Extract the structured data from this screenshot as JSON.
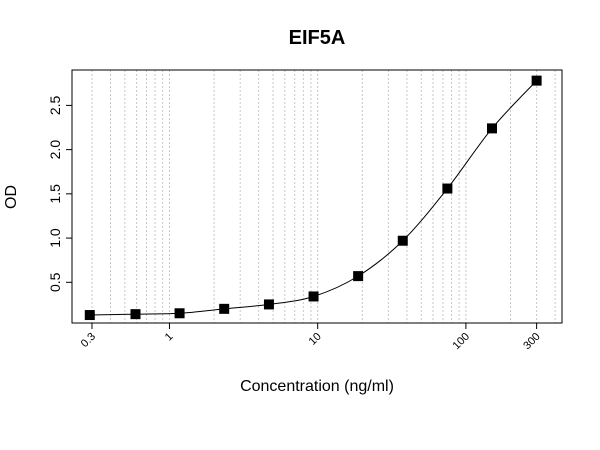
{
  "chart_data": {
    "type": "scatter",
    "title": "EIF5A",
    "x_label": "Concentration (ng/ml)",
    "y_label": "OD",
    "x_log": true,
    "grid": true,
    "fit_curve": true,
    "color": "#000000",
    "x": [
      0.29,
      0.59,
      1.17,
      2.34,
      4.69,
      9.38,
      18.75,
      37.5,
      75,
      150,
      300
    ],
    "values": [
      0.13,
      0.14,
      0.15,
      0.2,
      0.25,
      0.34,
      0.57,
      0.97,
      1.56,
      2.24,
      2.78
    ],
    "xlim": [
      0.22,
      445
    ],
    "xticks": [
      0.3,
      1,
      10,
      100,
      300
    ],
    "ylim": [
      0.04,
      2.9
    ],
    "yticks": [
      0.5,
      {
        "value": 1,
        "label": "1.0"
      },
      1.5,
      {
        "value": 2,
        "label": "2.0"
      },
      2.5
    ]
  }
}
